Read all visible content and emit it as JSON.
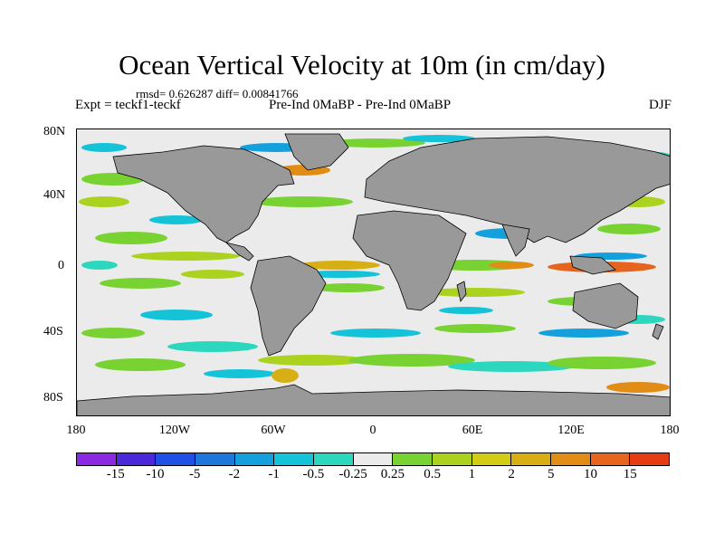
{
  "title": "Ocean Vertical Velocity at 10m (in cm/day)",
  "stats": "rmsd= 0.626287 diff= 0.00841766",
  "expt": "Expt = teckf1-teckf",
  "comparison": "Pre-Ind 0MaBP - Pre-Ind 0MaBP",
  "season": "DJF",
  "lat_labels": [
    "80N",
    "40N",
    "0",
    "40S",
    "80S"
  ],
  "lon_labels": [
    "180",
    "120W",
    "60W",
    "0",
    "60E",
    "120E",
    "180"
  ],
  "colorbar": {
    "colors": [
      "#8a2be2",
      "#4b28d9",
      "#1e50e6",
      "#1e78dc",
      "#14a0dc",
      "#14c3d7",
      "#2dd7be",
      "#ebebeb",
      "#78d232",
      "#aad21e",
      "#d2cd14",
      "#d7af14",
      "#e18c14",
      "#e6641e",
      "#e63c14"
    ],
    "labels": [
      "-15",
      "-10",
      "-5",
      "-2",
      "-1",
      "-0.5",
      "-0.25",
      "0.25",
      "0.5",
      "1",
      "2",
      "5",
      "10",
      "15"
    ]
  },
  "land_color": "#999999",
  "background_color": "#ebebeb"
}
